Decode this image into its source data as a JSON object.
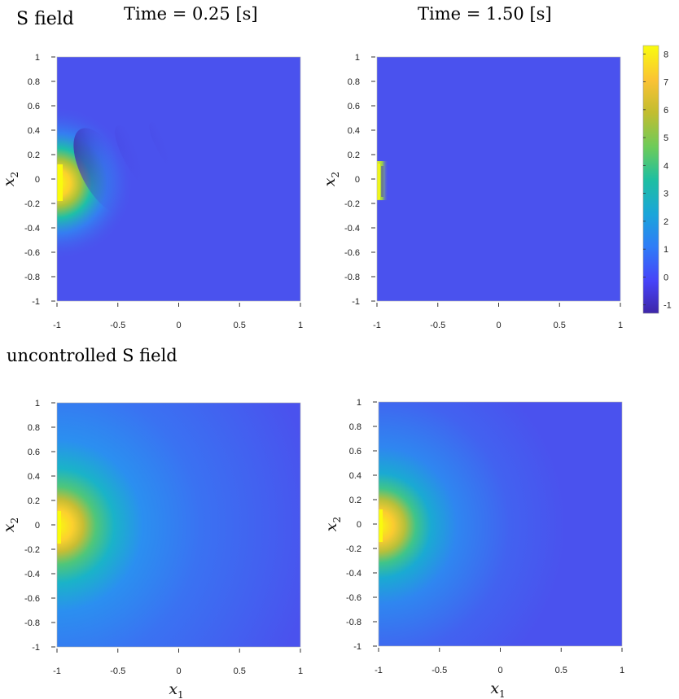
{
  "figure": {
    "row_labels": [
      "S field",
      "uncontrolled S field"
    ],
    "column_titles": [
      "Time = 0.25 [s]",
      "Time = 1.50 [s]"
    ]
  },
  "colorbar": {
    "ticks": [
      "-1",
      "0",
      "1",
      "2",
      "3",
      "4",
      "5",
      "6",
      "7",
      "8"
    ],
    "range": [
      -1.3,
      8.3
    ],
    "colormap": "parula"
  },
  "axes": {
    "xlabel_var": "x",
    "xlabel_sub": "1",
    "ylabel_var": "x",
    "ylabel_sub": "2",
    "x_ticks": [
      "-1",
      "-0.5",
      "0",
      "0.5",
      "1"
    ],
    "y_ticks": [
      "1",
      "0.8",
      "0.6",
      "0.4",
      "0.2",
      "0",
      "-0.2",
      "-0.4",
      "-0.6",
      "-0.8",
      "-1"
    ]
  },
  "chart_data": [
    {
      "type": "heatmap",
      "row": "S field",
      "title": "Time = 0.25 [s]",
      "xlim": [
        -1,
        1
      ],
      "ylim": [
        -1,
        1
      ],
      "clim": [
        -1.3,
        8.3
      ],
      "background_value": 0.1,
      "features": "source at x1=-1, x2 in [-0.15,0.15], peak about 8; dark diagonal trough near (-0.6, 0.05) about -0.8; faint ripples toward x1=0"
    },
    {
      "type": "heatmap",
      "row": "S field",
      "title": "Time = 1.50 [s]",
      "xlim": [
        -1,
        1
      ],
      "ylim": [
        -1,
        1
      ],
      "clim": [
        -1.3,
        8.3
      ],
      "background_value": 0.1,
      "features": "narrow source strip at x1=-1, x2 in [-0.15,0.15], peak about 8; otherwise uniform"
    },
    {
      "type": "heatmap",
      "row": "uncontrolled S field",
      "title": "",
      "xlim": [
        -1,
        1
      ],
      "ylim": [
        -1,
        1
      ],
      "clim": [
        -1.3,
        8.3
      ],
      "background_value": 0.1,
      "features": "source at x1=-1, x2 near 0, peak about 8; broad smooth decay out to x1 about 0.3"
    },
    {
      "type": "heatmap",
      "row": "uncontrolled S field",
      "title": "",
      "xlim": [
        -1,
        1
      ],
      "ylim": [
        -1,
        1
      ],
      "clim": [
        -1.3,
        8.3
      ],
      "background_value": 0.1,
      "features": "source at x1=-1, x2 near 0, peak about 8; smooth decay out to x1 about -0.2"
    }
  ]
}
